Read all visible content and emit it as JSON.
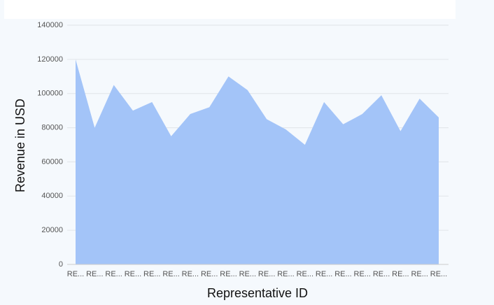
{
  "chart_data": {
    "type": "area",
    "x_label": "Representative ID",
    "y_label": "Revenue in USD",
    "categories": [
      "RE...",
      "RE...",
      "RE...",
      "RE...",
      "RE...",
      "RE...",
      "RE...",
      "RE...",
      "RE...",
      "RE...",
      "RE...",
      "RE...",
      "RE...",
      "RE...",
      "RE...",
      "RE...",
      "RE...",
      "RE...",
      "RE...",
      "RE..."
    ],
    "values": [
      120000,
      80000,
      105000,
      90000,
      95000,
      75000,
      88000,
      92000,
      110000,
      102000,
      85000,
      79000,
      70000,
      95000,
      82000,
      88000,
      99000,
      78000,
      97000,
      86000
    ],
    "color": "#a3c4f8",
    "ylim": [
      0,
      140000
    ],
    "yticks": [
      0,
      20000,
      40000,
      60000,
      80000,
      100000,
      120000,
      140000
    ],
    "grid": true
  }
}
